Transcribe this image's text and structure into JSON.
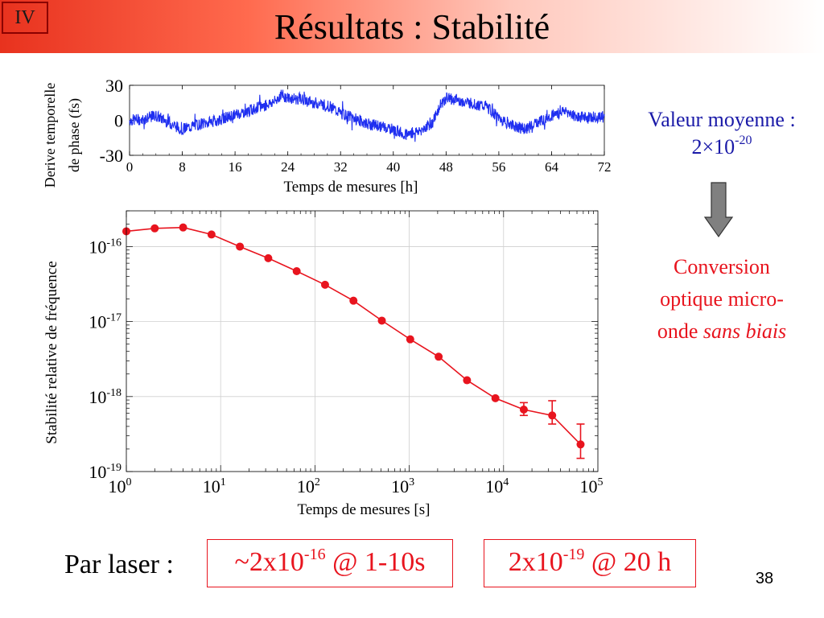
{
  "header": {
    "section": "IV",
    "title": "Résultats : Stabilité",
    "gradient_colors": [
      "#e8321e",
      "#ff6a4e",
      "#ffc8bc",
      "#ffffff"
    ]
  },
  "chart_data": [
    {
      "type": "line",
      "ylabel": "Derive temporelle de phase (fs)",
      "ylabel_lines": [
        "Derive temporelle",
        "de phase (fs)"
      ],
      "xlabel": "Temps de mesures   [h]",
      "xlim": [
        0,
        72
      ],
      "ylim": [
        -30,
        30
      ],
      "xticks": [
        0,
        8,
        16,
        24,
        32,
        40,
        48,
        56,
        64,
        72
      ],
      "yticks": [
        30,
        0,
        -30
      ],
      "grid": false,
      "series": [
        {
          "color": "#1f2ff0",
          "x": [
            0,
            2,
            4,
            6,
            8,
            10,
            12,
            14,
            16,
            18,
            20,
            22,
            23,
            24,
            26,
            28,
            30,
            32,
            34,
            36,
            38,
            40,
            42,
            44,
            46,
            47,
            48,
            50,
            52,
            54,
            56,
            58,
            60,
            62,
            64,
            66,
            68,
            70,
            72
          ],
          "y": [
            0,
            1,
            4,
            -2,
            -8,
            -4,
            -2,
            1,
            5,
            8,
            12,
            16,
            22,
            19,
            18,
            15,
            13,
            6,
            2,
            -3,
            -5,
            -8,
            -12,
            -9,
            -2,
            12,
            19,
            17,
            14,
            12,
            2,
            -4,
            -8,
            -1,
            4,
            8,
            3,
            3,
            3
          ]
        }
      ]
    },
    {
      "type": "line",
      "ylabel": "Stabilité relative de fréquence",
      "xlabel": "Temps de mesures   [s]",
      "xscale": "log",
      "yscale": "log",
      "xlim": [
        1,
        100000
      ],
      "ylim": [
        1e-19,
        3e-16
      ],
      "xtick_labels": [
        {
          "base": "10",
          "exp": "0"
        },
        {
          "base": "10",
          "exp": "1"
        },
        {
          "base": "10",
          "exp": "2"
        },
        {
          "base": "10",
          "exp": "3"
        },
        {
          "base": "10",
          "exp": "4"
        },
        {
          "base": "10",
          "exp": "5"
        }
      ],
      "ytick_labels": [
        {
          "base": "10",
          "exp": "-16"
        },
        {
          "base": "10",
          "exp": "-17"
        },
        {
          "base": "10",
          "exp": "-18"
        },
        {
          "base": "10",
          "exp": "-19"
        }
      ],
      "grid": true,
      "series": [
        {
          "color": "#e8141e",
          "x": [
            1,
            2,
            4,
            8,
            16,
            32,
            64,
            128,
            256,
            512,
            1024,
            2048,
            4096,
            8192,
            16384,
            32768,
            65536
          ],
          "y": [
            1.6e-16,
            1.75e-16,
            1.8e-16,
            1.45e-16,
            1e-16,
            7e-17,
            4.7e-17,
            3.1e-17,
            1.9e-17,
            1.03e-17,
            5.8e-18,
            3.4e-18,
            1.65e-18,
            9.5e-19,
            6.7e-19,
            5.6e-19,
            2.3e-19
          ],
          "error_up": [
            0,
            0,
            0,
            0,
            0,
            0,
            0,
            0,
            0,
            0,
            0,
            0,
            0,
            0,
            1.6e-19,
            3.2e-19,
            2e-19
          ],
          "error_down": [
            0,
            0,
            0,
            0,
            0,
            0,
            0,
            0,
            0,
            0,
            0,
            0,
            0,
            0,
            1.1e-19,
            1.3e-19,
            8e-20
          ]
        }
      ]
    }
  ],
  "mean_panel": {
    "line1": "Valeur moyenne :",
    "value_base": "2×10",
    "value_exp": "-20",
    "color": "#1a1aa8"
  },
  "arrow": {
    "fill": "#808080"
  },
  "conversion_panel": {
    "line1": "Conversion",
    "line2": "optique micro-",
    "line3_plain": "onde ",
    "line3_italic": "sans biais",
    "color": "#e8141e"
  },
  "footer": {
    "par_laser_label": "Par laser :",
    "box1": {
      "prefix": "~2x10",
      "exp": "-16",
      "suffix": " @ 1-10s"
    },
    "box2": {
      "prefix": "2x10",
      "exp": "-19",
      "suffix": " @ 20 h"
    },
    "page_number": "38"
  }
}
